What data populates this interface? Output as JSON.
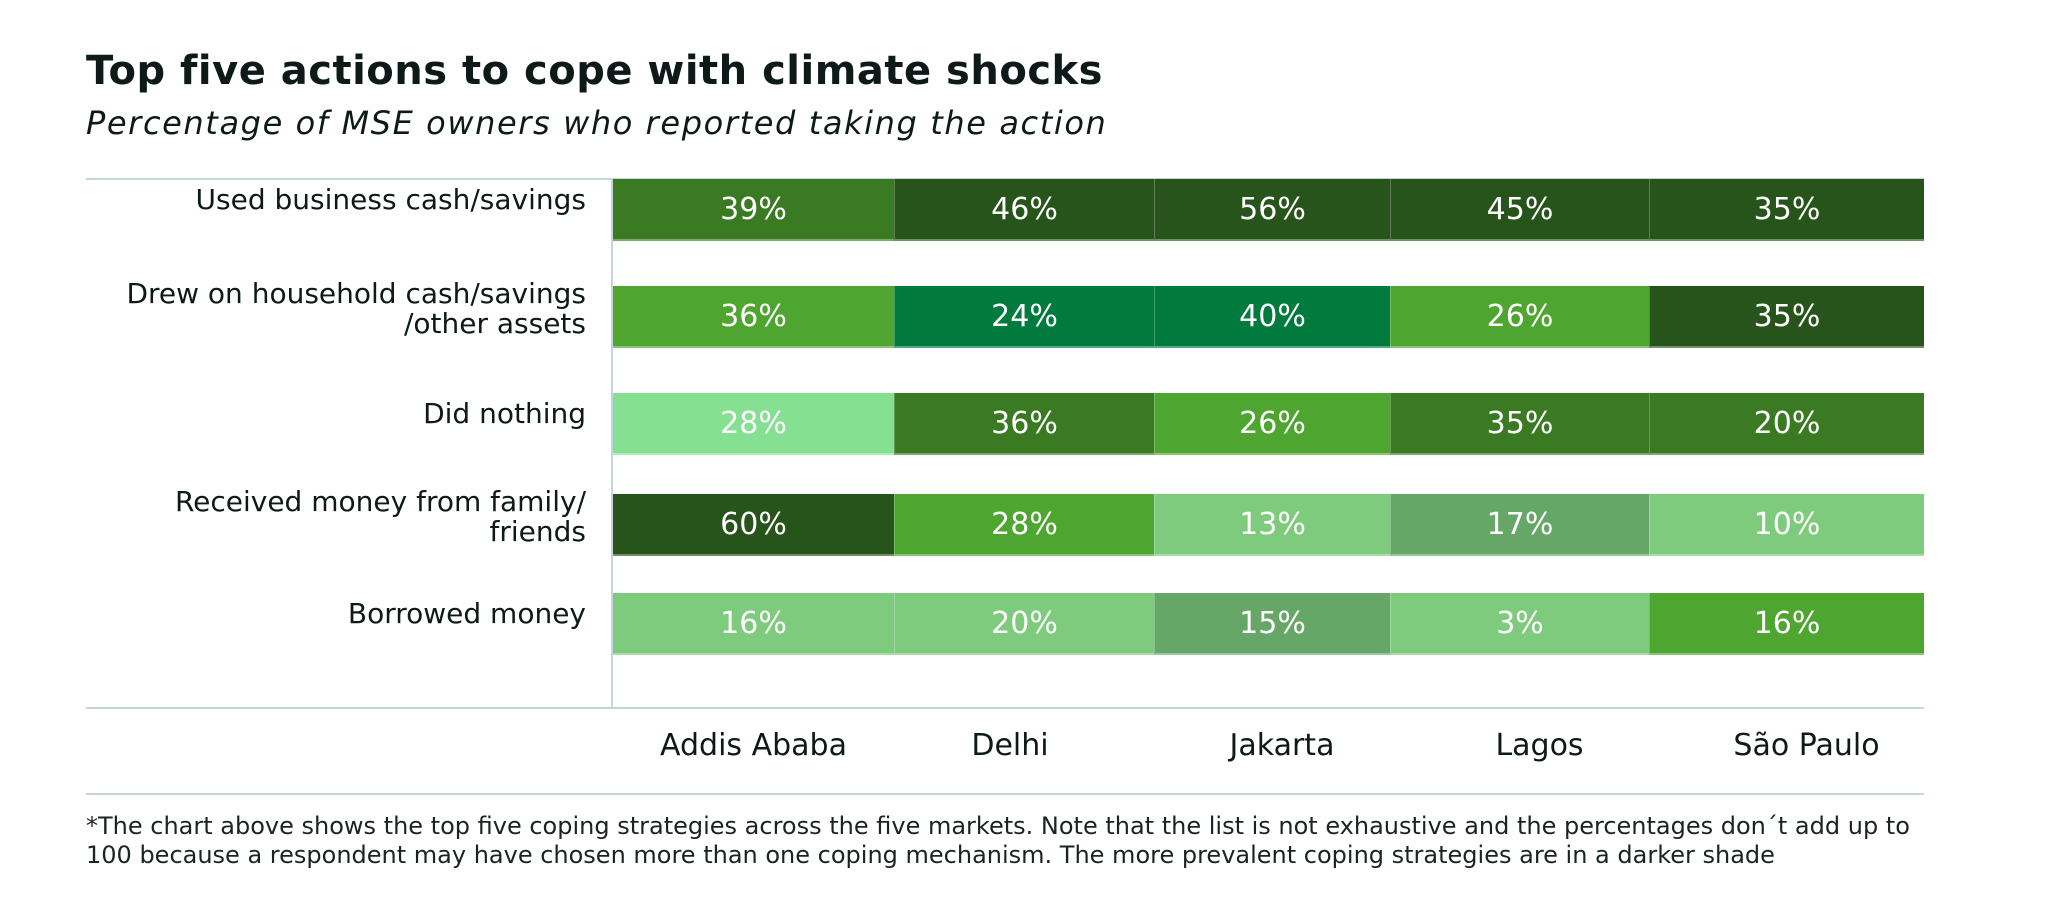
{
  "header": {
    "title": "Top five actions to cope with climate shocks",
    "subtitle": "Percentage of MSE owners who reported taking the action"
  },
  "footnote": "*The chart above shows the top five coping strategies across the five markets. Note that the list is not exhaustive and the percentages don´t add up to 100 because a respondent may have chosen more than one coping mechanism. The more prevalent coping strategies are in a darker shade",
  "palette": {
    "darkest": "#27541a",
    "dark": "#3a7a22",
    "teal": "#017a3d",
    "mid": "#4ea52f",
    "muted": "#66a768",
    "light": "#7ecb7e",
    "pale": "#86e091",
    "grid": "#c5d5df",
    "text": "#0d1a17"
  },
  "chart_data": {
    "type": "heatmap",
    "title": "Top five actions to cope with climate shocks",
    "subtitle": "Percentage of MSE owners who reported taking the action",
    "xlabel": "",
    "ylabel": "",
    "unit": "%",
    "categories": [
      "Addis Ababa",
      "Delhi",
      "Jakarta",
      "Lagos",
      "São Paulo"
    ],
    "rows": [
      "Used business cash/savings",
      "Drew on household cash/savings\n/other assets",
      "Did nothing",
      "Received money from family/\nfriends",
      "Borrowed money"
    ],
    "series": [
      {
        "name": "Used business cash/savings",
        "values": [
          39,
          46,
          56,
          45,
          35
        ],
        "labels": [
          "39%",
          "46%",
          "56%",
          "45%",
          "35%"
        ],
        "shades": [
          "dark",
          "darkest",
          "darkest",
          "darkest",
          "darkest"
        ]
      },
      {
        "name": "Drew on household cash/savings/other assets",
        "values": [
          36,
          24,
          40,
          26,
          35
        ],
        "labels": [
          "36%",
          "24%",
          "40%",
          "26%",
          "35%"
        ],
        "shades": [
          "mid",
          "teal",
          "teal",
          "mid",
          "darkest"
        ]
      },
      {
        "name": "Did nothing",
        "values": [
          28,
          36,
          26,
          35,
          20
        ],
        "labels": [
          "28%",
          "36%",
          "26%",
          "35%",
          "20%"
        ],
        "shades": [
          "pale",
          "dark",
          "mid",
          "dark",
          "dark"
        ]
      },
      {
        "name": "Received money from family/friends",
        "values": [
          60,
          28,
          13,
          17,
          10
        ],
        "labels": [
          "60%",
          "28%",
          "13%",
          "17%",
          "10%"
        ],
        "shades": [
          "darkest",
          "mid",
          "light",
          "muted",
          "light"
        ]
      },
      {
        "name": "Borrowed money",
        "values": [
          16,
          20,
          15,
          3,
          16
        ],
        "labels": [
          "16%",
          "20%",
          "15%",
          "3%",
          "16%"
        ],
        "shades": [
          "light",
          "light",
          "muted",
          "light",
          "mid"
        ]
      }
    ],
    "grid": false,
    "legend": "none"
  }
}
